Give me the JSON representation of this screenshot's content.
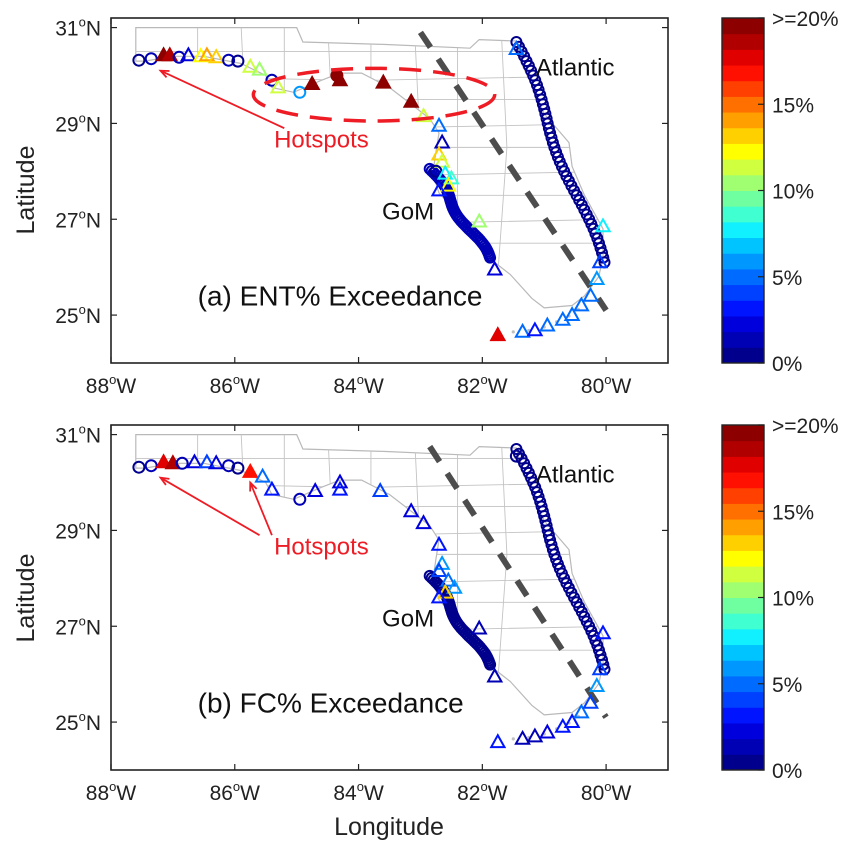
{
  "figure": {
    "ylabel": "Latitude",
    "xlabel": "Longitude",
    "x_ticks": [
      {
        "value": -88,
        "label": "88",
        "suffix": "W"
      },
      {
        "value": -86,
        "label": "86",
        "suffix": "W"
      },
      {
        "value": -84,
        "label": "84",
        "suffix": "W"
      },
      {
        "value": -82,
        "label": "82",
        "suffix": "W"
      },
      {
        "value": -80,
        "label": "80",
        "suffix": "W"
      }
    ],
    "y_ticks": [
      {
        "value": 31,
        "label": "31",
        "suffix": "N"
      },
      {
        "value": 29,
        "label": "29",
        "suffix": "N"
      },
      {
        "value": 27,
        "label": "27",
        "suffix": "N"
      },
      {
        "value": 25,
        "label": "25",
        "suffix": "N"
      }
    ],
    "degree_mark": "o",
    "xlim": [
      -88,
      -79
    ],
    "ylim": [
      24,
      31.2
    ]
  },
  "colorbar": {
    "labels": [
      ">=20%",
      "15%",
      "10%",
      "5%",
      "0%"
    ],
    "colors": [
      "#00008c",
      "#0000b4",
      "#0000dc",
      "#0014ff",
      "#0040ff",
      "#006cff",
      "#0098ff",
      "#00c4ff",
      "#10f0ff",
      "#40ffd0",
      "#70ffa0",
      "#a0ff70",
      "#d0ff40",
      "#ffff00",
      "#ffd000",
      "#ffa000",
      "#ff7000",
      "#ff4000",
      "#ff1000",
      "#e00000",
      "#b00000",
      "#8c0000"
    ]
  },
  "panels": [
    {
      "id": "a",
      "title": "(a) ENT% Exceedance",
      "hotspots_label": "Hotspots",
      "atlantic_label": "Atlantic",
      "gom_label": "GoM",
      "dashed_line": [
        [
          -83,
          30.9
        ],
        [
          -80,
          25.1
        ]
      ],
      "hotspot_ellipse": {
        "cx": -83.75,
        "cy": 29.6,
        "rx": 1.95,
        "ry": 0.55
      },
      "arrows": [
        {
          "from": [
            -85.2,
            28.9
          ],
          "to": [
            -87.2,
            30.1
          ]
        }
      ],
      "label_positions": {
        "hotspots": [
          -84.6,
          28.5
        ],
        "atlantic": [
          -80.5,
          30.0
        ],
        "gom": [
          -83.2,
          27.0
        ],
        "title": [
          -86.6,
          25.2
        ]
      },
      "markers": [
        {
          "lon": -87.55,
          "lat": 30.32,
          "shape": "circle",
          "v": 0
        },
        {
          "lon": -87.35,
          "lat": 30.35,
          "shape": "circle",
          "v": 1
        },
        {
          "lon": -87.15,
          "lat": 30.42,
          "shape": "triangle",
          "v": 20,
          "fill": true
        },
        {
          "lon": -87.05,
          "lat": 30.42,
          "shape": "triangle",
          "v": 19,
          "fill": true
        },
        {
          "lon": -86.9,
          "lat": 30.38,
          "shape": "circle",
          "v": 1
        },
        {
          "lon": -86.75,
          "lat": 30.42,
          "shape": "triangle",
          "v": 2
        },
        {
          "lon": -86.55,
          "lat": 30.4,
          "shape": "triangle",
          "v": 12
        },
        {
          "lon": -86.45,
          "lat": 30.42,
          "shape": "triangle",
          "v": 14
        },
        {
          "lon": -86.3,
          "lat": 30.38,
          "shape": "triangle",
          "v": 13
        },
        {
          "lon": -86.1,
          "lat": 30.32,
          "shape": "circle",
          "v": 1
        },
        {
          "lon": -85.95,
          "lat": 30.3,
          "shape": "circle",
          "v": 0
        },
        {
          "lon": -85.75,
          "lat": 30.18,
          "shape": "triangle",
          "v": 11
        },
        {
          "lon": -85.6,
          "lat": 30.12,
          "shape": "triangle",
          "v": 10
        },
        {
          "lon": -85.4,
          "lat": 29.9,
          "shape": "circle",
          "v": 1
        },
        {
          "lon": -85.3,
          "lat": 29.75,
          "shape": "triangle",
          "v": 11
        },
        {
          "lon": -84.95,
          "lat": 29.65,
          "shape": "circle",
          "v": 6
        },
        {
          "lon": -84.75,
          "lat": 29.82,
          "shape": "triangle",
          "v": 20,
          "fill": true
        },
        {
          "lon": -84.35,
          "lat": 30.0,
          "shape": "circle",
          "v": 20,
          "fill": true
        },
        {
          "lon": -84.3,
          "lat": 29.9,
          "shape": "triangle",
          "v": 20,
          "fill": true
        },
        {
          "lon": -83.6,
          "lat": 29.85,
          "shape": "triangle",
          "v": 20,
          "fill": true
        },
        {
          "lon": -83.15,
          "lat": 29.45,
          "shape": "triangle",
          "v": 20,
          "fill": true
        },
        {
          "lon": -82.95,
          "lat": 29.15,
          "shape": "triangle",
          "v": 11
        },
        {
          "lon": -82.7,
          "lat": 28.95,
          "shape": "triangle",
          "v": 5
        },
        {
          "lon": -82.65,
          "lat": 28.6,
          "shape": "triangle",
          "v": 1
        },
        {
          "lon": -82.7,
          "lat": 28.35,
          "shape": "triangle",
          "v": 13
        },
        {
          "lon": -82.65,
          "lat": 28.2,
          "shape": "triangle",
          "v": 11
        },
        {
          "lon": -82.75,
          "lat": 28.0,
          "shape": "circle",
          "v": 0
        },
        {
          "lon": -82.6,
          "lat": 27.95,
          "shape": "triangle",
          "v": 8
        },
        {
          "lon": -82.5,
          "lat": 27.85,
          "shape": "triangle",
          "v": 9
        },
        {
          "lon": -82.55,
          "lat": 27.7,
          "shape": "triangle",
          "v": 12
        },
        {
          "lon": -82.7,
          "lat": 27.6,
          "shape": "triangle",
          "v": 3
        },
        {
          "lon": -82.05,
          "lat": 26.95,
          "shape": "triangle",
          "v": 10
        },
        {
          "lon": -81.8,
          "lat": 25.95,
          "shape": "triangle",
          "v": 2
        },
        {
          "lon": -81.75,
          "lat": 24.58,
          "shape": "triangle",
          "v": 18,
          "fill": true
        },
        {
          "lon": -81.35,
          "lat": 24.65,
          "shape": "triangle",
          "v": 5
        },
        {
          "lon": -81.15,
          "lat": 24.68,
          "shape": "triangle",
          "v": 3
        },
        {
          "lon": -80.95,
          "lat": 24.78,
          "shape": "triangle",
          "v": 5
        },
        {
          "lon": -80.7,
          "lat": 24.9,
          "shape": "triangle",
          "v": 5
        },
        {
          "lon": -80.55,
          "lat": 25.0,
          "shape": "triangle",
          "v": 5
        },
        {
          "lon": -80.4,
          "lat": 25.2,
          "shape": "triangle",
          "v": 5
        },
        {
          "lon": -80.25,
          "lat": 25.4,
          "shape": "triangle",
          "v": 5
        },
        {
          "lon": -80.15,
          "lat": 25.75,
          "shape": "triangle",
          "v": 6
        },
        {
          "lon": -80.1,
          "lat": 26.1,
          "shape": "triangle",
          "v": 4
        },
        {
          "lon": -80.05,
          "lat": 26.85,
          "shape": "triangle",
          "v": 8
        },
        {
          "lon": -81.45,
          "lat": 30.55,
          "shape": "triangle",
          "v": 5
        }
      ],
      "coast_west": {
        "from": [
          -82.85,
          28.05
        ],
        "to": [
          -81.9,
          26.2
        ],
        "v": 1
      },
      "coast_east": {
        "from": [
          -81.45,
          30.7
        ],
        "to": [
          -80.05,
          26.1
        ],
        "v": 0
      }
    },
    {
      "id": "b",
      "title": "(b) FC% Exceedance",
      "hotspots_label": "Hotspots",
      "atlantic_label": "Atlantic",
      "gom_label": "GoM",
      "dashed_line": [
        [
          -82.85,
          30.75
        ],
        [
          -80,
          25.1
        ]
      ],
      "arrows": [
        {
          "from": [
            -85.6,
            28.9
          ],
          "to": [
            -87.2,
            30.1
          ]
        },
        {
          "from": [
            -85.4,
            28.9
          ],
          "to": [
            -85.75,
            30.0
          ]
        }
      ],
      "label_positions": {
        "hotspots": [
          -84.6,
          28.5
        ],
        "atlantic": [
          -80.5,
          30.0
        ],
        "gom": [
          -83.2,
          27.0
        ],
        "title": [
          -86.6,
          25.2
        ]
      },
      "markers": [
        {
          "lon": -87.55,
          "lat": 30.32,
          "shape": "circle",
          "v": 0
        },
        {
          "lon": -87.35,
          "lat": 30.35,
          "shape": "circle",
          "v": 1
        },
        {
          "lon": -87.15,
          "lat": 30.42,
          "shape": "triangle",
          "v": 18,
          "fill": true
        },
        {
          "lon": -87.0,
          "lat": 30.4,
          "shape": "triangle",
          "v": 19,
          "fill": true
        },
        {
          "lon": -86.85,
          "lat": 30.4,
          "shape": "circle",
          "v": 1
        },
        {
          "lon": -86.65,
          "lat": 30.42,
          "shape": "triangle",
          "v": 2
        },
        {
          "lon": -86.45,
          "lat": 30.42,
          "shape": "triangle",
          "v": 4
        },
        {
          "lon": -86.3,
          "lat": 30.4,
          "shape": "triangle",
          "v": 2
        },
        {
          "lon": -86.1,
          "lat": 30.35,
          "shape": "circle",
          "v": 1
        },
        {
          "lon": -85.95,
          "lat": 30.3,
          "shape": "circle",
          "v": 0
        },
        {
          "lon": -85.75,
          "lat": 30.22,
          "shape": "triangle",
          "v": 17,
          "fill": true
        },
        {
          "lon": -85.55,
          "lat": 30.12,
          "shape": "triangle",
          "v": 5
        },
        {
          "lon": -85.4,
          "lat": 29.85,
          "shape": "triangle",
          "v": 3
        },
        {
          "lon": -84.95,
          "lat": 29.65,
          "shape": "circle",
          "v": 1
        },
        {
          "lon": -84.7,
          "lat": 29.82,
          "shape": "triangle",
          "v": 2
        },
        {
          "lon": -84.3,
          "lat": 30.0,
          "shape": "triangle",
          "v": 2
        },
        {
          "lon": -84.3,
          "lat": 29.85,
          "shape": "triangle",
          "v": 3
        },
        {
          "lon": -83.65,
          "lat": 29.82,
          "shape": "triangle",
          "v": 4
        },
        {
          "lon": -83.15,
          "lat": 29.4,
          "shape": "triangle",
          "v": 2
        },
        {
          "lon": -82.95,
          "lat": 29.15,
          "shape": "triangle",
          "v": 2
        },
        {
          "lon": -82.7,
          "lat": 28.7,
          "shape": "triangle",
          "v": 3
        },
        {
          "lon": -82.65,
          "lat": 28.3,
          "shape": "triangle",
          "v": 6
        },
        {
          "lon": -82.7,
          "lat": 28.15,
          "shape": "triangle",
          "v": 4
        },
        {
          "lon": -82.55,
          "lat": 27.95,
          "shape": "triangle",
          "v": 5
        },
        {
          "lon": -82.45,
          "lat": 27.8,
          "shape": "triangle",
          "v": 6
        },
        {
          "lon": -82.6,
          "lat": 27.7,
          "shape": "triangle",
          "v": 13
        },
        {
          "lon": -82.7,
          "lat": 27.6,
          "shape": "triangle",
          "v": 3
        },
        {
          "lon": -82.05,
          "lat": 26.95,
          "shape": "triangle",
          "v": 1
        },
        {
          "lon": -81.8,
          "lat": 25.95,
          "shape": "triangle",
          "v": 1
        },
        {
          "lon": -81.75,
          "lat": 24.58,
          "shape": "triangle",
          "v": 3
        },
        {
          "lon": -81.35,
          "lat": 24.65,
          "shape": "triangle",
          "v": 1
        },
        {
          "lon": -81.15,
          "lat": 24.7,
          "shape": "triangle",
          "v": 1
        },
        {
          "lon": -80.95,
          "lat": 24.78,
          "shape": "triangle",
          "v": 2
        },
        {
          "lon": -80.7,
          "lat": 24.9,
          "shape": "triangle",
          "v": 3
        },
        {
          "lon": -80.55,
          "lat": 25.0,
          "shape": "triangle",
          "v": 3
        },
        {
          "lon": -80.4,
          "lat": 25.2,
          "shape": "triangle",
          "v": 5
        },
        {
          "lon": -80.25,
          "lat": 25.4,
          "shape": "triangle",
          "v": 4
        },
        {
          "lon": -80.15,
          "lat": 25.75,
          "shape": "triangle",
          "v": 6
        },
        {
          "lon": -80.1,
          "lat": 26.1,
          "shape": "triangle",
          "v": 4
        },
        {
          "lon": -80.05,
          "lat": 26.85,
          "shape": "triangle",
          "v": 3
        },
        {
          "lon": -81.45,
          "lat": 30.55,
          "shape": "circle",
          "v": 0
        }
      ],
      "coast_west": {
        "from": [
          -82.85,
          28.05
        ],
        "to": [
          -81.9,
          26.2
        ],
        "v": 0
      },
      "coast_east": {
        "from": [
          -81.45,
          30.7
        ],
        "to": [
          -80.05,
          26.1
        ],
        "v": 0
      }
    }
  ]
}
